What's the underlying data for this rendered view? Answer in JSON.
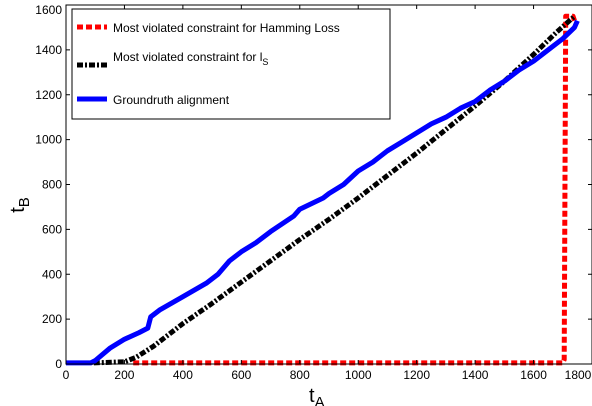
{
  "chart_data": {
    "type": "line",
    "xlabel_main": "t",
    "xlabel_sub": "A",
    "ylabel_main": "t",
    "ylabel_sub": "B",
    "xlim": [
      0,
      1800
    ],
    "ylim": [
      0,
      1600
    ],
    "xticks": [
      0,
      200,
      400,
      600,
      800,
      1000,
      1200,
      1400,
      1600,
      1800
    ],
    "yticks": [
      0,
      200,
      400,
      600,
      800,
      1000,
      1200,
      1400,
      1600
    ],
    "grid": false,
    "legend_position": "top-left",
    "series": [
      {
        "name": "Most violated constraint for Hamming Loss",
        "color": "#ff0000",
        "style": "dashed",
        "points": [
          [
            230,
            5
          ],
          [
            1700,
            5
          ],
          [
            1705,
            20
          ],
          [
            1710,
            1550
          ],
          [
            1735,
            1550
          ],
          [
            1740,
            1530
          ]
        ]
      },
      {
        "name_prefix": "Most violated constraint for l",
        "name_sub": "S",
        "color": "#000000",
        "style": "dashdot",
        "points": [
          [
            95,
            5
          ],
          [
            200,
            10
          ],
          [
            240,
            30
          ],
          [
            300,
            80
          ],
          [
            400,
            180
          ],
          [
            500,
            270
          ],
          [
            600,
            365
          ],
          [
            700,
            460
          ],
          [
            800,
            555
          ],
          [
            900,
            645
          ],
          [
            1000,
            740
          ],
          [
            1100,
            840
          ],
          [
            1200,
            940
          ],
          [
            1300,
            1045
          ],
          [
            1400,
            1150
          ],
          [
            1500,
            1260
          ],
          [
            1600,
            1380
          ],
          [
            1680,
            1480
          ],
          [
            1740,
            1550
          ]
        ]
      },
      {
        "name": "Groundruth alignment",
        "color": "#0000ff",
        "style": "solid",
        "points": [
          [
            0,
            5
          ],
          [
            85,
            5
          ],
          [
            100,
            15
          ],
          [
            150,
            70
          ],
          [
            200,
            110
          ],
          [
            250,
            140
          ],
          [
            280,
            160
          ],
          [
            290,
            210
          ],
          [
            320,
            240
          ],
          [
            400,
            300
          ],
          [
            480,
            360
          ],
          [
            520,
            400
          ],
          [
            560,
            460
          ],
          [
            600,
            500
          ],
          [
            650,
            540
          ],
          [
            700,
            590
          ],
          [
            780,
            660
          ],
          [
            800,
            690
          ],
          [
            880,
            740
          ],
          [
            900,
            760
          ],
          [
            950,
            800
          ],
          [
            1000,
            860
          ],
          [
            1050,
            900
          ],
          [
            1100,
            950
          ],
          [
            1150,
            990
          ],
          [
            1200,
            1030
          ],
          [
            1250,
            1070
          ],
          [
            1300,
            1100
          ],
          [
            1350,
            1140
          ],
          [
            1400,
            1170
          ],
          [
            1450,
            1220
          ],
          [
            1500,
            1260
          ],
          [
            1550,
            1310
          ],
          [
            1600,
            1350
          ],
          [
            1650,
            1400
          ],
          [
            1700,
            1450
          ],
          [
            1740,
            1500
          ],
          [
            1750,
            1530
          ]
        ]
      }
    ]
  }
}
